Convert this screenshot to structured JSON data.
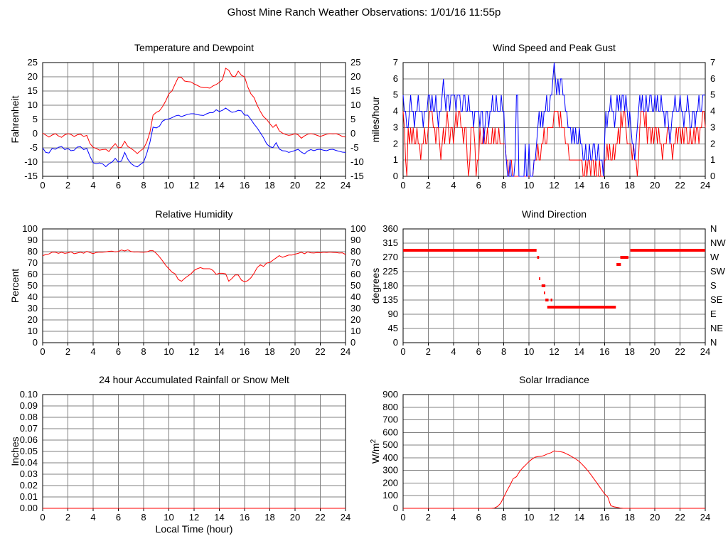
{
  "header": {
    "title": "Ghost Mine Ranch Weather Observations: 1/01/16 11:55p"
  },
  "colors": {
    "red": "#ff0000",
    "blue": "#0000ff",
    "grid": "#808080",
    "border": "#000000"
  },
  "chart_data": [
    {
      "id": "temperature-dewpoint",
      "type": "line",
      "title": "Temperature and Dewpoint",
      "ylabel": "Fahrenheit",
      "ylim": [
        -15,
        25
      ],
      "ytick": 5,
      "xlim": [
        0,
        24
      ],
      "xtick": 2,
      "right_labels": "mirror",
      "x_start": 0,
      "x_step": 0.25,
      "series": [
        {
          "name": "temperature",
          "color": "#ff0000",
          "values": [
            0.2,
            -0.5,
            -1.2,
            -0.5,
            0,
            -0.8,
            -1.3,
            -0.4,
            0,
            -0.3,
            -1,
            -0.4,
            -0.2,
            -1,
            -0.6,
            -3.5,
            -4.8,
            -5.2,
            -5.8,
            -5.6,
            -5.5,
            -6.3,
            -4.8,
            -3.5,
            -5,
            -4.8,
            -2.7,
            -4.5,
            -5.2,
            -6,
            -7,
            -6,
            -5.2,
            -3,
            0.5,
            6.5,
            7.5,
            8,
            9.5,
            11.5,
            14,
            15,
            17.5,
            19.8,
            19.7,
            18.5,
            18.3,
            18.2,
            17.5,
            17,
            16.4,
            16.2,
            16.2,
            16,
            16.8,
            17.3,
            18,
            19,
            23,
            22.3,
            20.3,
            20,
            22,
            20.5,
            20,
            16.5,
            14,
            12.7,
            10,
            7.8,
            6,
            5,
            3.5,
            2.2,
            3.2,
            1,
            0.2,
            -0.3,
            -0.6,
            -0.4,
            0,
            -0.4,
            -1.6,
            -0.8,
            -0.2,
            0,
            -0.2,
            -0.6,
            -1,
            -0.6,
            -0.2,
            0,
            -0.1,
            0,
            -0.4,
            -1,
            -1.2
          ]
        },
        {
          "name": "dewpoint",
          "color": "#0000ff",
          "values": [
            -5,
            -6.6,
            -6.8,
            -5.2,
            -5.5,
            -4.8,
            -4.5,
            -5.6,
            -5.2,
            -6,
            -5.8,
            -4.7,
            -4.6,
            -5.6,
            -5.2,
            -8,
            -10.2,
            -10.6,
            -10.3,
            -10.6,
            -11.6,
            -10.6,
            -10,
            -8.7,
            -10,
            -9.6,
            -6.6,
            -9,
            -10.5,
            -11.3,
            -11.7,
            -10.8,
            -10,
            -7,
            -3,
            2.3,
            2,
            2.6,
            4.4,
            5,
            5.2,
            5.6,
            6.2,
            6.5,
            6,
            6.4,
            6.8,
            7,
            7,
            6.7,
            6.5,
            6.4,
            7,
            7.4,
            7.4,
            8.4,
            7.8,
            8.2,
            9,
            8.2,
            7.5,
            7.7,
            8.2,
            8,
            6.5,
            6.5,
            5,
            3.4,
            2,
            0.3,
            -1.4,
            -3.6,
            -4.6,
            -4.9,
            -3.2,
            -5.4,
            -6,
            -6.1,
            -6.6,
            -6.3,
            -5.9,
            -5.5,
            -6.5,
            -7.1,
            -6.1,
            -5.6,
            -6,
            -5.6,
            -5.5,
            -5.8,
            -6,
            -5.6,
            -5.5,
            -5.9,
            -6.2,
            -6.5,
            -6.6
          ]
        }
      ]
    },
    {
      "id": "wind-speed-gust",
      "type": "line",
      "title": "Wind Speed and Peak Gust",
      "ylabel": "miles/hour",
      "ylim": [
        0,
        7
      ],
      "ytick": 1,
      "xlim": [
        0,
        24
      ],
      "xtick": 2,
      "right_labels": "mirror",
      "x_start": 0,
      "x_step": 0.1,
      "series": [
        {
          "name": "wind-speed",
          "color": "#ff0000",
          "values": [
            4,
            3,
            1,
            0,
            3,
            2,
            3,
            2,
            3,
            2,
            2,
            3,
            2,
            2,
            1,
            2,
            2,
            3,
            2,
            2,
            3,
            4,
            4,
            4,
            3,
            3,
            2,
            3,
            3,
            2,
            1,
            2,
            3,
            2,
            3,
            4,
            3,
            2,
            3,
            3,
            2,
            3,
            4,
            3,
            4,
            4,
            3,
            3,
            2,
            3,
            3,
            1,
            0,
            1,
            3,
            3,
            3,
            2,
            0,
            1,
            1,
            3,
            2,
            2,
            3,
            2,
            2,
            3,
            2,
            2,
            2,
            3,
            2,
            3,
            2,
            2,
            3,
            2,
            2,
            2,
            2,
            2,
            1,
            1,
            0,
            1,
            1,
            0,
            0,
            0,
            0,
            0,
            0,
            0,
            0,
            0,
            0,
            0,
            0,
            0,
            0,
            0,
            0,
            0,
            1,
            1,
            1,
            2,
            1,
            1,
            2,
            2,
            3,
            2,
            2,
            3,
            3,
            3,
            3,
            3,
            4,
            4,
            4,
            4,
            3,
            4,
            3,
            3,
            3,
            2,
            2,
            2,
            1,
            1,
            1,
            1,
            1,
            1,
            1,
            1,
            1,
            1,
            1,
            0,
            0,
            1,
            0,
            1,
            1,
            0,
            1,
            1,
            0,
            1,
            0,
            0,
            1,
            0,
            0,
            0,
            1,
            1,
            2,
            1,
            2,
            1,
            1,
            2,
            1,
            2,
            2,
            3,
            2,
            4,
            3,
            4,
            4,
            3,
            2,
            2,
            2,
            2,
            1,
            2,
            1,
            1,
            0,
            1,
            3,
            4,
            4,
            4,
            3,
            4,
            2,
            3,
            3,
            2,
            3,
            2,
            3,
            3,
            2,
            3,
            2,
            2,
            1,
            2,
            2,
            2,
            3,
            3,
            2,
            2,
            1,
            2,
            2,
            3,
            2,
            3,
            3,
            2,
            3,
            2,
            3,
            3,
            2,
            2,
            3,
            2,
            2,
            3,
            2,
            3,
            3,
            2,
            3,
            3,
            4,
            4,
            3
          ]
        },
        {
          "name": "peak-gust",
          "color": "#0000ff",
          "values": [
            5,
            4,
            4,
            3,
            3,
            4,
            5,
            4,
            4,
            3,
            4,
            4,
            5,
            4,
            4,
            4,
            3,
            4,
            4,
            4,
            5,
            5,
            4,
            5,
            4,
            4,
            5,
            4,
            3,
            4,
            4,
            5,
            6,
            5,
            4,
            5,
            5,
            4,
            5,
            5,
            5,
            5,
            4,
            5,
            5,
            5,
            4,
            4,
            5,
            5,
            4,
            4,
            5,
            4,
            4,
            4,
            3,
            4,
            4,
            4,
            4,
            3,
            4,
            4,
            2,
            3,
            4,
            4,
            3,
            4,
            4,
            5,
            4,
            4,
            5,
            4,
            4,
            4,
            5,
            4,
            4,
            2,
            1,
            0,
            0,
            1,
            0,
            0,
            0,
            1,
            5,
            5,
            0,
            0,
            0,
            0,
            0,
            2,
            0,
            0,
            2,
            0,
            0,
            0,
            1,
            1,
            2,
            3,
            4,
            3,
            4,
            3,
            4,
            4,
            5,
            4,
            4,
            5,
            5,
            6,
            7,
            6,
            5,
            6,
            5,
            6,
            6,
            5,
            5,
            4,
            4,
            3,
            3,
            3,
            2,
            3,
            2,
            3,
            2,
            2,
            3,
            2,
            2,
            1,
            1,
            2,
            1,
            1,
            2,
            1,
            1,
            2,
            2,
            1,
            1,
            2,
            1,
            1,
            1,
            0,
            2,
            4,
            3,
            4,
            4,
            5,
            4,
            4,
            3,
            4,
            5,
            4,
            5,
            4,
            5,
            5,
            4,
            5,
            4,
            3,
            4,
            3,
            2,
            2,
            1,
            2,
            3,
            4,
            5,
            4,
            5,
            4,
            4,
            5,
            4,
            4,
            5,
            5,
            4,
            4,
            5,
            4,
            5,
            4,
            4,
            5,
            4,
            4,
            3,
            4,
            4,
            3,
            2,
            3,
            4,
            4,
            5,
            4,
            4,
            4,
            5,
            4,
            4,
            3,
            4,
            4,
            5,
            4,
            3,
            3,
            4,
            4,
            3,
            4,
            4,
            5,
            4,
            4,
            5,
            5,
            5
          ]
        }
      ]
    },
    {
      "id": "relative-humidity",
      "type": "line",
      "title": "Relative Humidity",
      "ylabel": "Percent",
      "ylim": [
        0,
        100
      ],
      "ytick": 10,
      "xlim": [
        0,
        24
      ],
      "xtick": 2,
      "right_labels": "mirror",
      "x_start": 0,
      "x_step": 0.25,
      "series": [
        {
          "name": "humidity",
          "color": "#ff0000",
          "values": [
            76.5,
            77.5,
            78,
            79.5,
            79.5,
            78.5,
            79.5,
            78.5,
            79,
            79.8,
            78.2,
            78.8,
            79.5,
            78.6,
            80.3,
            79.2,
            78.3,
            79.3,
            79.6,
            79.5,
            79.8,
            80.3,
            80.5,
            79.8,
            80.2,
            81.5,
            80.6,
            81.6,
            80.1,
            79.7,
            79.9,
            79.6,
            79.5,
            79.8,
            80.9,
            80.9,
            78.5,
            75.5,
            72,
            68,
            65,
            62,
            60.5,
            55.5,
            54,
            56.5,
            58.5,
            60.5,
            63.5,
            65,
            66,
            65,
            65,
            65,
            63.5,
            60,
            61,
            61,
            60.5,
            54,
            56.5,
            59.5,
            59.5,
            55,
            53.5,
            54.5,
            57,
            61,
            66,
            68.5,
            67,
            70,
            70.5,
            72.5,
            74.5,
            76.5,
            75,
            76,
            77,
            77,
            77.8,
            78.5,
            79.5,
            78.2,
            79.8,
            79,
            78.8,
            79.2,
            79,
            79.5,
            79.3,
            79.6,
            79.4,
            79.2,
            78.8,
            79,
            77.5
          ]
        }
      ]
    },
    {
      "id": "wind-direction",
      "type": "scatter",
      "title": "Wind Direction",
      "ylabel": "degrees",
      "ylim": [
        0,
        360
      ],
      "ytick": 45,
      "xlim": [
        0,
        24
      ],
      "xtick": 2,
      "right_labels": [
        "N",
        "NW",
        "W",
        "SW",
        "S",
        "SE",
        "E",
        "NE",
        "N"
      ],
      "segment_color": "#ff0000",
      "segments": [
        [
          0,
          10.6,
          292.5
        ],
        [
          10.65,
          10.8,
          270
        ],
        [
          10.8,
          10.9,
          202.5
        ],
        [
          11.0,
          11.3,
          180
        ],
        [
          11.18,
          11.28,
          157.5
        ],
        [
          11.3,
          11.55,
          135
        ],
        [
          11.72,
          11.85,
          135
        ],
        [
          11.45,
          16.9,
          112.5
        ],
        [
          16.95,
          17.3,
          247.5
        ],
        [
          17.25,
          17.9,
          270
        ],
        [
          18.05,
          24,
          292.5
        ]
      ]
    },
    {
      "id": "rainfall",
      "type": "line",
      "title": "24 hour Accumulated Rainfall or Snow Melt",
      "ylabel": "Inches",
      "xlabel": "Local Time (hour)",
      "ylim": [
        0,
        0.1
      ],
      "ytick": 0.01,
      "y_decimals": 2,
      "xlim": [
        0,
        24
      ],
      "xtick": 2,
      "x_start": 0,
      "x_step": 24,
      "series": [
        {
          "name": "rainfall",
          "color": "#ff0000",
          "values": [
            0,
            0
          ]
        }
      ]
    },
    {
      "id": "solar-irradiance",
      "type": "line",
      "title": "Solar Irradiance",
      "ylabel": "W/m^2",
      "ylim": [
        0,
        900
      ],
      "ytick": 100,
      "xlim": [
        0,
        24
      ],
      "xtick": 2,
      "x_start": 0,
      "x_step": 0.25,
      "series": [
        {
          "name": "solar",
          "color": "#ff0000",
          "values": [
            0,
            0,
            0,
            0,
            0,
            0,
            0,
            0,
            0,
            0,
            0,
            0,
            0,
            0,
            0,
            0,
            0,
            0,
            0,
            0,
            0,
            0,
            0,
            0,
            0,
            0,
            0,
            0,
            0,
            2,
            15,
            40,
            90,
            140,
            185,
            235,
            250,
            290,
            320,
            345,
            370,
            390,
            405,
            410,
            412,
            420,
            432,
            440,
            455,
            450,
            448,
            442,
            430,
            418,
            403,
            388,
            370,
            345,
            318,
            288,
            255,
            220,
            185,
            150,
            115,
            90,
            20,
            12,
            8,
            2,
            0,
            0,
            0,
            0,
            0,
            0,
            0,
            0,
            0,
            0,
            0,
            0,
            0,
            0,
            0,
            0,
            0,
            0,
            0,
            0,
            0,
            0,
            0,
            0,
            0,
            0,
            0
          ]
        }
      ]
    }
  ]
}
